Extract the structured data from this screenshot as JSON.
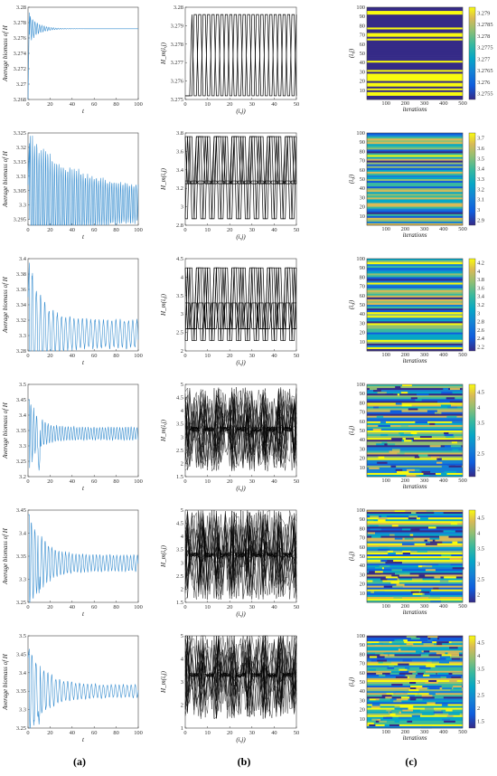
{
  "panel_labels": [
    "(a)",
    "(b)",
    "(c)"
  ],
  "colors": {
    "series_a": "#3a8fd0",
    "series_b": "#000000",
    "axis": "#444444"
  },
  "chart_data": [
    {
      "type": "line",
      "row": 1,
      "column": "a",
      "ylabel": "Average biomass of H",
      "xlabel": "t",
      "xlim": [
        0,
        100
      ],
      "ylim": [
        3.268,
        3.28
      ],
      "yticks": [
        "3.268",
        "3.27",
        "3.272",
        "3.274",
        "3.276",
        "3.278",
        "3.28"
      ],
      "xticks": [
        "0",
        "20",
        "40",
        "60",
        "80",
        "100"
      ],
      "series": [
        {
          "start": 3.268,
          "peak": 3.2794,
          "equilibrium": 3.2772,
          "decay": 0.12,
          "period": 2.1,
          "floor": 0.0
        }
      ]
    },
    {
      "type": "line",
      "row": 1,
      "column": "b",
      "ylabel": "H_m(i,j)",
      "xlabel": "(i,j)",
      "xlim": [
        0,
        50
      ],
      "ylim": [
        3.275,
        3.28
      ],
      "yticks": [
        "3.275",
        "3.276",
        "3.277",
        "3.278",
        "3.279",
        "3.28"
      ],
      "xticks": [
        "0",
        "10",
        "20",
        "30",
        "40",
        "50"
      ],
      "series": [
        {
          "mode": "two_level",
          "levels": [
            3.2752,
            3.2796
          ]
        }
      ]
    },
    {
      "type": "heatmap",
      "row": 1,
      "column": "c",
      "ylabel": "(i,j)",
      "xlabel": "iterations",
      "xticks": [
        "100",
        "200",
        "300",
        "400",
        "500"
      ],
      "yticks": [
        "10",
        "20",
        "30",
        "40",
        "50",
        "60",
        "70",
        "80",
        "90",
        "100"
      ],
      "colorbar_ticks": [
        "3.2755",
        "3.276",
        "3.2765",
        "3.277",
        "3.2775",
        "3.278",
        "3.2785",
        "3.279"
      ],
      "pattern": "bands2"
    },
    {
      "type": "line",
      "row": 2,
      "column": "a",
      "ylabel": "Average biomass of H",
      "xlabel": "t",
      "xlim": [
        0,
        100
      ],
      "ylim": [
        3.293,
        3.325
      ],
      "yticks": [
        "3.295",
        "3.3",
        "3.305",
        "3.31",
        "3.315",
        "3.32",
        "3.325"
      ],
      "xticks": [
        "0",
        "20",
        "40",
        "60",
        "80",
        "100"
      ],
      "series": [
        {
          "start": 3.307,
          "peak": 3.3215,
          "equilibrium": 3.3005,
          "decay": 0.025,
          "period": 2.0,
          "floor": 0.0052
        }
      ]
    },
    {
      "type": "line",
      "row": 2,
      "column": "b",
      "ylabel": "H_m(i,j)",
      "xlabel": "(i,j)",
      "xlim": [
        0,
        50
      ],
      "ylim": [
        2.8,
        3.8
      ],
      "yticks": [
        "2.8",
        "3",
        "3.2",
        "3.4",
        "3.6",
        "3.8"
      ],
      "xticks": [
        "0",
        "10",
        "20",
        "30",
        "40",
        "50"
      ],
      "series": [
        {
          "mode": "multi_level",
          "levels": [
            2.87,
            3.25,
            3.28,
            3.76
          ]
        }
      ]
    },
    {
      "type": "heatmap",
      "row": 2,
      "column": "c",
      "ylabel": "(i,j)",
      "xlabel": "iterations",
      "xticks": [
        "100",
        "200",
        "300",
        "400",
        "500"
      ],
      "yticks": [
        "10",
        "20",
        "30",
        "40",
        "50",
        "60",
        "70",
        "80",
        "90",
        "100"
      ],
      "colorbar_ticks": [
        "2.9",
        "3",
        "3.1",
        "3.2",
        "3.3",
        "3.4",
        "3.5",
        "3.6",
        "3.7"
      ],
      "pattern": "bandsN"
    },
    {
      "type": "line",
      "row": 3,
      "column": "a",
      "ylabel": "Average biomass of H",
      "xlabel": "t",
      "xlim": [
        0,
        100
      ],
      "ylim": [
        3.28,
        3.4
      ],
      "yticks": [
        "3.28",
        "3.3",
        "3.32",
        "3.34",
        "3.36",
        "3.38",
        "3.4"
      ],
      "xticks": [
        "0",
        "20",
        "40",
        "60",
        "80",
        "100"
      ],
      "series": [
        {
          "start": 3.35,
          "peak": 3.395,
          "equilibrium": 3.302,
          "decay": 0.09,
          "period": 3.8,
          "floor": 0.019
        }
      ]
    },
    {
      "type": "line",
      "row": 3,
      "column": "b",
      "ylabel": "H_m(i,j)",
      "xlabel": "(i,j)",
      "xlim": [
        0,
        50
      ],
      "ylim": [
        2,
        4.5
      ],
      "yticks": [
        "2",
        "2.5",
        "3",
        "3.5",
        "4",
        "4.5"
      ],
      "xticks": [
        "0",
        "10",
        "20",
        "30",
        "40",
        "50"
      ],
      "series": [
        {
          "mode": "multi_level",
          "levels": [
            2.28,
            2.6,
            3.3,
            4.25
          ]
        }
      ]
    },
    {
      "type": "heatmap",
      "row": 3,
      "column": "c",
      "ylabel": "(i,j)",
      "xlabel": "iterations",
      "xticks": [
        "100",
        "200",
        "300",
        "400",
        "500"
      ],
      "yticks": [
        "10",
        "20",
        "30",
        "40",
        "50",
        "60",
        "70",
        "80",
        "90",
        "100"
      ],
      "colorbar_ticks": [
        "2.2",
        "2.4",
        "2.6",
        "2.8",
        "3",
        "3.2",
        "3.4",
        "3.6",
        "3.8",
        "4",
        "4.2"
      ],
      "pattern": "bandsN"
    },
    {
      "type": "line",
      "row": 4,
      "column": "a",
      "ylabel": "Average biomass of H",
      "xlabel": "t",
      "xlim": [
        0,
        100
      ],
      "ylim": [
        3.2,
        3.5
      ],
      "yticks": [
        "3.2",
        "3.25",
        "3.3",
        "3.35",
        "3.4",
        "3.45",
        "3.5"
      ],
      "xticks": [
        "0",
        "20",
        "40",
        "60",
        "80",
        "100"
      ],
      "series": [
        {
          "start": 3.45,
          "peak": 3.45,
          "equilibrium": 3.34,
          "decay": 0.12,
          "period": 2.6,
          "floor": 0.022,
          "dip": [
            10,
            3.22
          ]
        }
      ]
    },
    {
      "type": "line",
      "row": 4,
      "column": "b",
      "ylabel": "H_m(i,j)",
      "xlabel": "(i,j)",
      "xlim": [
        0,
        50
      ],
      "ylim": [
        1.5,
        5
      ],
      "yticks": [
        "1.5",
        "2",
        "2.5",
        "3",
        "3.5",
        "4",
        "4.5",
        "5"
      ],
      "xticks": [
        "0",
        "10",
        "20",
        "30",
        "40",
        "50"
      ],
      "series": [
        {
          "mode": "chaotic",
          "center": 3.3,
          "spread": 1.6
        }
      ]
    },
    {
      "type": "heatmap",
      "row": 4,
      "column": "c",
      "ylabel": "(i,j)",
      "xlabel": "iterations",
      "xticks": [
        "100",
        "200",
        "300",
        "400",
        "500"
      ],
      "yticks": [
        "10",
        "20",
        "30",
        "40",
        "50",
        "60",
        "70",
        "80",
        "90",
        "100"
      ],
      "colorbar_ticks": [
        "2",
        "2.5",
        "3",
        "3.5",
        "4",
        "4.5"
      ],
      "pattern": "mixed"
    },
    {
      "type": "line",
      "row": 5,
      "column": "a",
      "ylabel": "Average biomass of H",
      "xlabel": "t",
      "xlim": [
        0,
        100
      ],
      "ylim": [
        3.25,
        3.45
      ],
      "yticks": [
        "3.25",
        "3.3",
        "3.35",
        "3.4",
        "3.45"
      ],
      "xticks": [
        "0",
        "20",
        "40",
        "60",
        "80",
        "100"
      ],
      "series": [
        {
          "start": 3.44,
          "peak": 3.44,
          "equilibrium": 3.335,
          "decay": 0.08,
          "period": 3.1,
          "floor": 0.018,
          "dip": [
            10,
            3.27
          ]
        }
      ]
    },
    {
      "type": "line",
      "row": 5,
      "column": "b",
      "ylabel": "H_m(i,j)",
      "xlabel": "(i,j)",
      "xlim": [
        0,
        50
      ],
      "ylim": [
        1.5,
        5
      ],
      "yticks": [
        "1.5",
        "2",
        "2.5",
        "3",
        "3.5",
        "4",
        "4.5",
        "5"
      ],
      "xticks": [
        "0",
        "10",
        "20",
        "30",
        "40",
        "50"
      ],
      "series": [
        {
          "mode": "chaotic",
          "center": 3.3,
          "spread": 1.7
        }
      ]
    },
    {
      "type": "heatmap",
      "row": 5,
      "column": "c",
      "ylabel": "(i,j)",
      "xlabel": "iterations",
      "xticks": [
        "100",
        "200",
        "300",
        "400",
        "500"
      ],
      "yticks": [
        "10",
        "20",
        "30",
        "40",
        "50",
        "60",
        "70",
        "80",
        "90",
        "100"
      ],
      "colorbar_ticks": [
        "2",
        "2.5",
        "3",
        "3.5",
        "4",
        "4.5"
      ],
      "pattern": "mixed"
    },
    {
      "type": "line",
      "row": 6,
      "column": "a",
      "ylabel": "Average biomass of H",
      "xlabel": "t",
      "xlim": [
        0,
        100
      ],
      "ylim": [
        3.25,
        3.5
      ],
      "yticks": [
        "3.25",
        "3.3",
        "3.35",
        "3.4",
        "3.45",
        "3.5"
      ],
      "xticks": [
        "0",
        "20",
        "40",
        "60",
        "80",
        "100"
      ],
      "series": [
        {
          "start": 3.44,
          "peak": 3.465,
          "equilibrium": 3.35,
          "decay": 0.07,
          "period": 3.6,
          "floor": 0.018,
          "dip": [
            10,
            3.26
          ]
        }
      ]
    },
    {
      "type": "line",
      "row": 6,
      "column": "b",
      "ylabel": "H_m(i,j)",
      "xlabel": "(i,j)",
      "xlim": [
        0,
        50
      ],
      "ylim": [
        1,
        5
      ],
      "yticks": [
        "1",
        "2",
        "3",
        "4",
        "5"
      ],
      "xticks": [
        "0",
        "10",
        "20",
        "30",
        "40",
        "50"
      ],
      "series": [
        {
          "mode": "chaotic",
          "center": 3.3,
          "spread": 1.9
        }
      ]
    },
    {
      "type": "heatmap",
      "row": 6,
      "column": "c",
      "ylabel": "(i,j)",
      "xlabel": "iterations",
      "xticks": [
        "100",
        "200",
        "300",
        "400",
        "500"
      ],
      "yticks": [
        "10",
        "20",
        "30",
        "40",
        "50",
        "60",
        "70",
        "80",
        "90",
        "100"
      ],
      "colorbar_ticks": [
        "1.5",
        "2",
        "2.5",
        "3",
        "3.5",
        "4",
        "4.5"
      ],
      "pattern": "noisy"
    }
  ]
}
